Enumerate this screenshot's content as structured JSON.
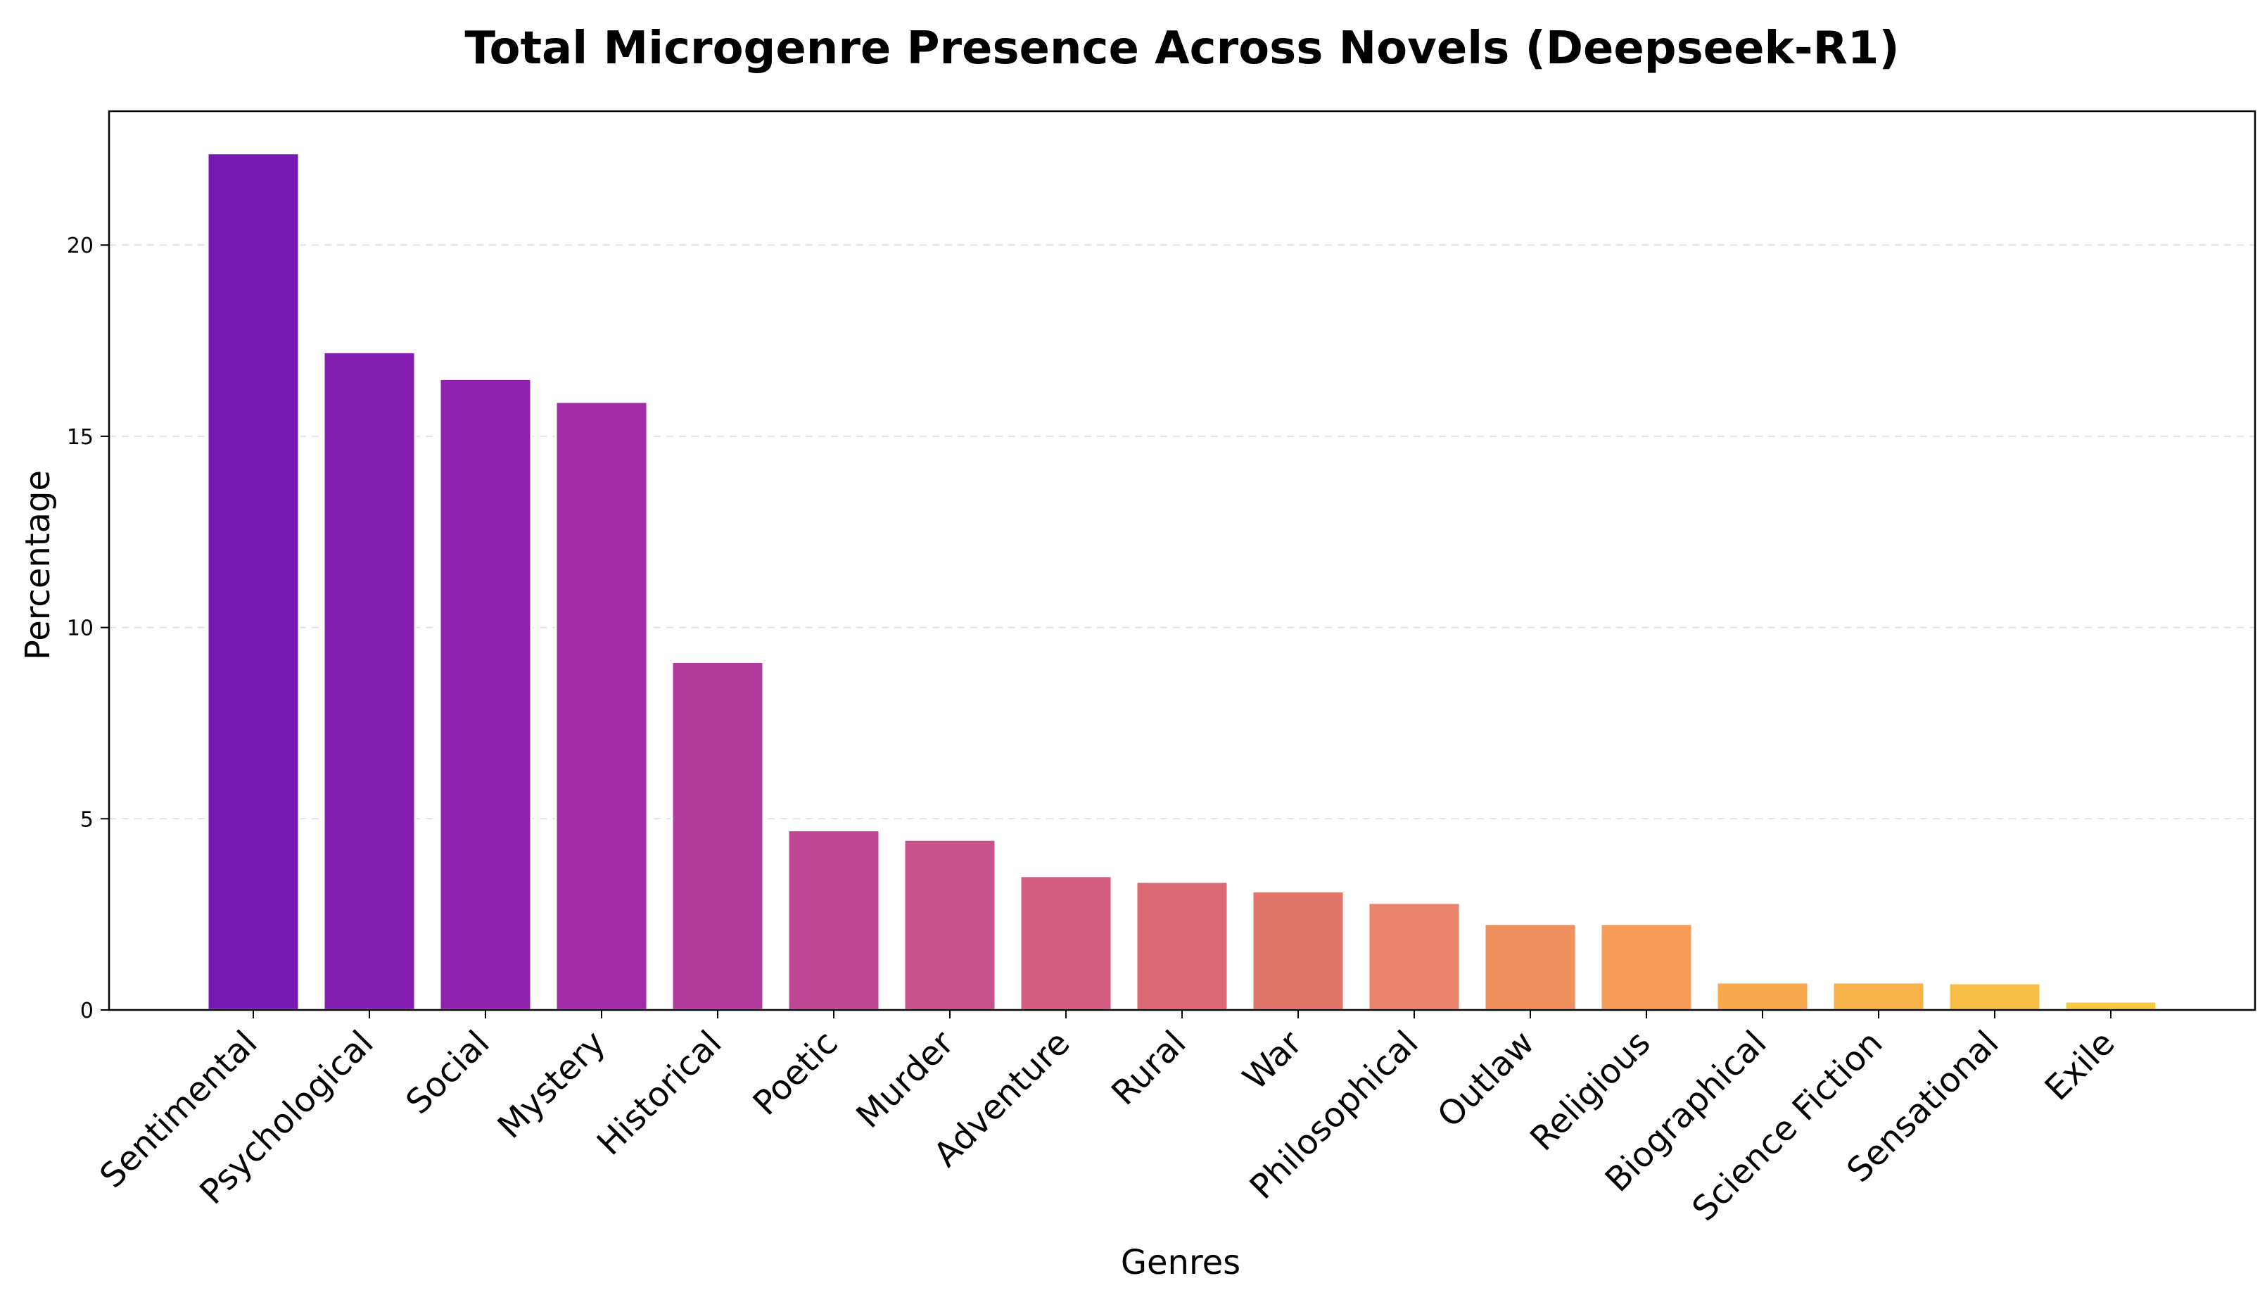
{
  "chart_data": {
    "type": "bar",
    "title": "Total Microgenre Presence Across Novels (Deepseek-R1)",
    "xlabel": "Genres",
    "ylabel": "Percentage",
    "ylim": [
      0,
      23.5
    ],
    "yticks": [
      0,
      5,
      10,
      15,
      20
    ],
    "grid": "y-dashed",
    "categories": [
      "Sentimental",
      "Psychological",
      "Social",
      "Mystery",
      "Historical",
      "Poetic",
      "Murder",
      "Adventure",
      "Rural",
      "War",
      "Philosophical",
      "Outlaw",
      "Religious",
      "Biographical",
      "Science Fiction",
      "Sensational",
      "Exile"
    ],
    "values": [
      22.4,
      17.2,
      16.5,
      15.9,
      9.1,
      4.7,
      4.45,
      3.5,
      3.35,
      3.1,
      2.8,
      2.25,
      2.25,
      0.72,
      0.72,
      0.7,
      0.22
    ],
    "colors": [
      "#7619b0",
      "#831eb0",
      "#9223ad",
      "#a12da6",
      "#b23c9e",
      "#bd4695",
      "#c8518a",
      "#d25c7f",
      "#db6874",
      "#e17569",
      "#e9836a",
      "#ef915e",
      "#f49c58",
      "#f7aa4e",
      "#f7b249",
      "#f8bd44",
      "#f7ca40"
    ]
  }
}
